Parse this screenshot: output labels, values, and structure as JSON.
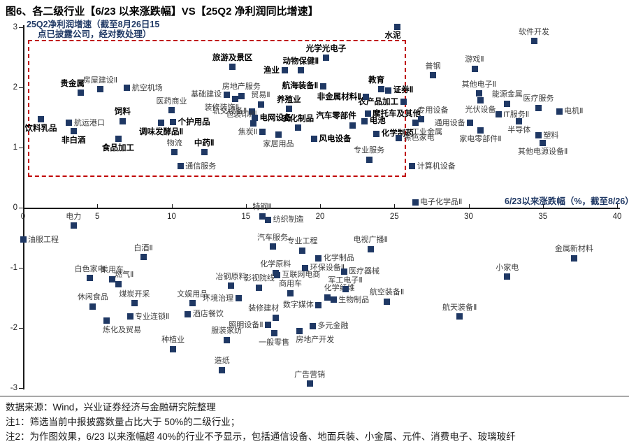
{
  "title": "图6、各二级行业【6/23 以来涨跌幅】VS【25Q2 净利润同比增速】",
  "footer": {
    "source": "数据来源：Wind，兴业证券经济与金融研究院整理",
    "note1": "注1：筛选当前中报披露数量占比大于 50%的二级行业；",
    "note2": "注2：为作图效果，6/23 以来涨幅超 40%的行业不予显示，包括通信设备、地面兵装、小金属、元件、消费电子、玻璃玻纤"
  },
  "chart_data": {
    "type": "scatter",
    "marker_color": "#1F3864",
    "accent_red": "#C00000",
    "x_axis": {
      "title": "6/23以来涨跌幅（%，截至8/26）",
      "range": [
        0,
        40
      ],
      "ticks": [
        0,
        5,
        10,
        15,
        20,
        25,
        30,
        35,
        40
      ]
    },
    "y_axis": {
      "title_line1": "25Q2净利润增速（截至8月26日15",
      "title_line2": "点已披露公司，经对数处理）",
      "range": [
        -3,
        3
      ],
      "ticks": [
        3,
        2,
        1,
        0,
        -1,
        -2,
        -3
      ]
    },
    "highlight_box": {
      "x0": 0.33,
      "y0": 0.56,
      "x1": 25.6,
      "y1": 2.79
    },
    "points": [
      {
        "l": "饮料乳品",
        "x": 1.2,
        "y": 1.47,
        "b": 1,
        "a": "b"
      },
      {
        "l": "航运港口",
        "x": 3.1,
        "y": 1.41,
        "b": 0,
        "a": "r"
      },
      {
        "l": "非白酒",
        "x": 3.4,
        "y": 1.27,
        "b": 1,
        "a": "b"
      },
      {
        "l": "贵金属",
        "x": 3.9,
        "y": 1.91,
        "b": 1,
        "a": "al"
      },
      {
        "l": "房屋建设Ⅱ",
        "x": 5.2,
        "y": 1.97,
        "b": 0,
        "a": "a"
      },
      {
        "l": "航空机场",
        "x": 7.0,
        "y": 1.99,
        "b": 0,
        "a": "r"
      },
      {
        "l": "饲料",
        "x": 6.7,
        "y": 1.44,
        "b": 1,
        "a": "a"
      },
      {
        "l": "食品加工",
        "x": 6.4,
        "y": 1.14,
        "b": 1,
        "a": "b"
      },
      {
        "l": "调味发酵品Ⅱ",
        "x": 9.3,
        "y": 1.41,
        "b": 1,
        "a": "b"
      },
      {
        "l": "个护用品",
        "x": 10.1,
        "y": 1.42,
        "b": 1,
        "a": "r"
      },
      {
        "l": "医药商业",
        "x": 10.0,
        "y": 1.62,
        "b": 0,
        "a": "a"
      },
      {
        "l": "物流",
        "x": 10.2,
        "y": 0.92,
        "b": 0,
        "a": "a"
      },
      {
        "l": "通信服务",
        "x": 10.6,
        "y": 0.69,
        "b": 0,
        "a": "r"
      },
      {
        "l": "中药Ⅱ",
        "x": 12.2,
        "y": 0.92,
        "b": 1,
        "a": "a"
      },
      {
        "l": "电力",
        "x": 3.4,
        "y": -0.3,
        "b": 0,
        "a": "a"
      },
      {
        "l": "旅游及景区",
        "x": 14.1,
        "y": 2.34,
        "b": 1,
        "a": "a"
      },
      {
        "l": "房地产服务",
        "x": 14.7,
        "y": 1.86,
        "b": 0,
        "a": "a"
      },
      {
        "l": "基础建设",
        "x": 13.7,
        "y": 1.88,
        "b": 0,
        "a": "l"
      },
      {
        "l": "装修装饰Ⅱ",
        "x": 14.3,
        "y": 1.81,
        "b": 0,
        "a": "bl"
      },
      {
        "l": "贸易Ⅱ",
        "x": 16.0,
        "y": 1.72,
        "b": 0,
        "a": "a"
      },
      {
        "l": "轨交设备Ⅱ",
        "x": 15.4,
        "y": 1.6,
        "b": 0,
        "a": "l"
      },
      {
        "l": "包装印刷",
        "x": 15.5,
        "y": 1.4,
        "b": 0,
        "a": "al"
      },
      {
        "l": "电网设备",
        "x": 15.6,
        "y": 1.49,
        "b": 1,
        "a": "r"
      },
      {
        "l": "焦炭Ⅱ",
        "x": 16.1,
        "y": 1.26,
        "b": 0,
        "a": "l"
      },
      {
        "l": "家居用品",
        "x": 17.2,
        "y": 1.21,
        "b": 0,
        "a": "b"
      },
      {
        "l": "养殖业",
        "x": 17.9,
        "y": 1.64,
        "b": 1,
        "a": "a"
      },
      {
        "l": "渔业",
        "x": 17.6,
        "y": 2.28,
        "b": 1,
        "a": "l"
      },
      {
        "l": "动物保健Ⅱ",
        "x": 18.7,
        "y": 2.28,
        "b": 1,
        "a": "a"
      },
      {
        "l": "航海装备Ⅱ",
        "x": 20.2,
        "y": 2.02,
        "b": 1,
        "a": "l"
      },
      {
        "l": "光学光电子",
        "x": 20.4,
        "y": 2.49,
        "b": 1,
        "a": "a"
      },
      {
        "l": "农化制品",
        "x": 18.5,
        "y": 1.33,
        "b": 1,
        "a": "a"
      },
      {
        "l": "汽车零部件",
        "x": 22.2,
        "y": 1.37,
        "b": 1,
        "a": "al"
      },
      {
        "l": "电池",
        "x": 23.0,
        "y": 1.44,
        "b": 1,
        "a": "r"
      },
      {
        "l": "风电设备",
        "x": 19.6,
        "y": 1.14,
        "b": 1,
        "a": "r"
      },
      {
        "l": "化学制药",
        "x": 23.8,
        "y": 1.23,
        "b": 1,
        "a": "r"
      },
      {
        "l": "摩托车及其他",
        "x": 23.2,
        "y": 1.56,
        "b": 1,
        "a": "r"
      },
      {
        "l": "农产品加工",
        "x": 25.6,
        "y": 1.76,
        "b": 1,
        "a": "l"
      },
      {
        "l": "非金属材料Ⅱ",
        "x": 23.1,
        "y": 1.84,
        "b": 1,
        "a": "l"
      },
      {
        "l": "教育",
        "x": 24.1,
        "y": 1.97,
        "b": 1,
        "a": "al"
      },
      {
        "l": "证券Ⅱ",
        "x": 24.6,
        "y": 1.95,
        "b": 1,
        "a": "r"
      },
      {
        "l": "水泥",
        "x": 25.2,
        "y": 3.01,
        "b": 1,
        "a": "bl"
      },
      {
        "l": "专业服务",
        "x": 23.3,
        "y": 0.8,
        "b": 0,
        "a": "a"
      },
      {
        "l": "黑色家电",
        "x": 25.3,
        "y": 1.16,
        "b": 0,
        "a": "r"
      },
      {
        "l": "计算机设备",
        "x": 26.2,
        "y": 0.69,
        "b": 0,
        "a": "r"
      },
      {
        "l": "电子化学品Ⅱ",
        "x": 26.4,
        "y": 0.09,
        "b": 0,
        "a": "r"
      },
      {
        "l": "软件开发",
        "x": 34.4,
        "y": 2.77,
        "b": 0,
        "a": "a"
      },
      {
        "l": "游戏Ⅱ",
        "x": 30.4,
        "y": 2.31,
        "b": 0,
        "a": "a"
      },
      {
        "l": "普钢",
        "x": 27.6,
        "y": 2.2,
        "b": 0,
        "a": "a"
      },
      {
        "l": "其他电子Ⅱ",
        "x": 30.7,
        "y": 1.9,
        "b": 0,
        "a": "a"
      },
      {
        "l": "能源金属",
        "x": 32.6,
        "y": 1.73,
        "b": 0,
        "a": "a"
      },
      {
        "l": "医疗服务",
        "x": 34.7,
        "y": 1.66,
        "b": 0,
        "a": "a"
      },
      {
        "l": "电机Ⅱ",
        "x": 36.1,
        "y": 1.6,
        "b": 0,
        "a": "r"
      },
      {
        "l": "光伏设备",
        "x": 30.8,
        "y": 1.78,
        "b": 0,
        "a": "b"
      },
      {
        "l": "IT服务Ⅱ",
        "x": 32.0,
        "y": 1.55,
        "b": 0,
        "a": "r"
      },
      {
        "l": "半导体",
        "x": 33.4,
        "y": 1.44,
        "b": 0,
        "a": "b"
      },
      {
        "l": "专用设备",
        "x": 26.8,
        "y": 1.47,
        "b": 0,
        "a": "ar"
      },
      {
        "l": "通用设备",
        "x": 30.1,
        "y": 1.41,
        "b": 0,
        "a": "l"
      },
      {
        "l": "工业金属",
        "x": 26.4,
        "y": 1.41,
        "b": 0,
        "a": "br"
      },
      {
        "l": "家电零部件Ⅱ",
        "x": 30.8,
        "y": 1.29,
        "b": 0,
        "a": "b"
      },
      {
        "l": "塑料",
        "x": 34.7,
        "y": 1.2,
        "b": 0,
        "a": "r"
      },
      {
        "l": "其他电源设备Ⅱ",
        "x": 35.0,
        "y": 1.08,
        "b": 0,
        "a": "b"
      },
      {
        "l": "特钢Ⅱ",
        "x": 16.1,
        "y": -0.14,
        "b": 0,
        "a": "a"
      },
      {
        "l": "纺织制造",
        "x": 16.5,
        "y": -0.2,
        "b": 0,
        "a": "r"
      },
      {
        "l": "油服工程",
        "x": 0.0,
        "y": -0.53,
        "b": 0,
        "a": "r"
      },
      {
        "l": "白酒Ⅱ",
        "x": 8.1,
        "y": -0.82,
        "b": 0,
        "a": "a"
      },
      {
        "l": "白色家电",
        "x": 4.5,
        "y": -1.17,
        "b": 0,
        "a": "a"
      },
      {
        "l": "乘用车",
        "x": 6.0,
        "y": -1.19,
        "b": 0,
        "a": "a"
      },
      {
        "l": "燃气Ⅱ",
        "x": 6.4,
        "y": -1.27,
        "b": 0,
        "a": "ar"
      },
      {
        "l": "休闲食品",
        "x": 4.7,
        "y": -1.64,
        "b": 0,
        "a": "a"
      },
      {
        "l": "煤炭开采",
        "x": 7.5,
        "y": -1.59,
        "b": 0,
        "a": "a"
      },
      {
        "l": "专业连锁Ⅱ",
        "x": 7.2,
        "y": -1.81,
        "b": 0,
        "a": "r"
      },
      {
        "l": "炼化及贸易",
        "x": 5.6,
        "y": -1.88,
        "b": 0,
        "a": "br"
      },
      {
        "l": "汽车服务",
        "x": 16.8,
        "y": -0.65,
        "b": 0,
        "a": "a"
      },
      {
        "l": "专业工程",
        "x": 18.8,
        "y": -0.71,
        "b": 0,
        "a": "a"
      },
      {
        "l": "化学制品",
        "x": 19.9,
        "y": -0.84,
        "b": 0,
        "a": "r"
      },
      {
        "l": "环保设备Ⅱ",
        "x": 19.0,
        "y": -1.0,
        "b": 0,
        "a": "r"
      },
      {
        "l": "化学原料",
        "x": 17.0,
        "y": -1.09,
        "b": 0,
        "a": "a"
      },
      {
        "l": "互联网电商",
        "x": 17.1,
        "y": -1.12,
        "b": 0,
        "a": "r"
      },
      {
        "l": "医疗器械",
        "x": 21.6,
        "y": -1.06,
        "b": 0,
        "a": "r"
      },
      {
        "l": "冶钢原料",
        "x": 14.0,
        "y": -1.3,
        "b": 0,
        "a": "a"
      },
      {
        "l": "影视院线",
        "x": 15.9,
        "y": -1.33,
        "b": 0,
        "a": "a"
      },
      {
        "l": "商用车",
        "x": 18.0,
        "y": -1.42,
        "b": 0,
        "a": "a"
      },
      {
        "l": "化学纤维",
        "x": 20.5,
        "y": -1.49,
        "b": 0,
        "a": "ar"
      },
      {
        "l": "生物制品",
        "x": 20.9,
        "y": -1.53,
        "b": 0,
        "a": "r"
      },
      {
        "l": "军工电子Ⅱ",
        "x": 21.7,
        "y": -1.36,
        "b": 0,
        "a": "a"
      },
      {
        "l": "文娱用品",
        "x": 11.4,
        "y": -1.59,
        "b": 0,
        "a": "a"
      },
      {
        "l": "环境治理",
        "x": 14.5,
        "y": -1.51,
        "b": 0,
        "a": "l"
      },
      {
        "l": "酒店餐饮",
        "x": 11.1,
        "y": -1.77,
        "b": 0,
        "a": "r"
      },
      {
        "l": "装修建材",
        "x": 17.0,
        "y": -1.83,
        "b": 0,
        "a": "al"
      },
      {
        "l": "照明设备Ⅱ",
        "x": 16.5,
        "y": -1.95,
        "b": 0,
        "a": "l"
      },
      {
        "l": "数字媒体",
        "x": 19.9,
        "y": -1.62,
        "b": 0,
        "a": "l"
      },
      {
        "l": "多元金融",
        "x": 19.5,
        "y": -1.97,
        "b": 0,
        "a": "r"
      },
      {
        "l": "房地产开发",
        "x": 18.6,
        "y": -2.05,
        "b": 0,
        "a": "br"
      },
      {
        "l": "一般零售",
        "x": 16.9,
        "y": -2.09,
        "b": 0,
        "a": "b"
      },
      {
        "l": "服装家纺",
        "x": 13.7,
        "y": -2.2,
        "b": 0,
        "a": "a"
      },
      {
        "l": "种植业",
        "x": 10.1,
        "y": -2.35,
        "b": 0,
        "a": "a"
      },
      {
        "l": "造纸",
        "x": 13.4,
        "y": -2.7,
        "b": 0,
        "a": "a"
      },
      {
        "l": "广告营销",
        "x": 19.3,
        "y": -2.93,
        "b": 0,
        "a": "a"
      },
      {
        "l": "小家电",
        "x": 32.6,
        "y": -1.15,
        "b": 0,
        "a": "a"
      },
      {
        "l": "金属新材料",
        "x": 37.1,
        "y": -0.84,
        "b": 0,
        "a": "a"
      },
      {
        "l": "航空装备Ⅱ",
        "x": 24.5,
        "y": -1.56,
        "b": 0,
        "a": "a"
      },
      {
        "l": "航天装备Ⅱ",
        "x": 29.4,
        "y": -1.81,
        "b": 0,
        "a": "a"
      },
      {
        "l": "电视广播Ⅱ",
        "x": 23.4,
        "y": -0.69,
        "b": 0,
        "a": "a"
      }
    ]
  }
}
